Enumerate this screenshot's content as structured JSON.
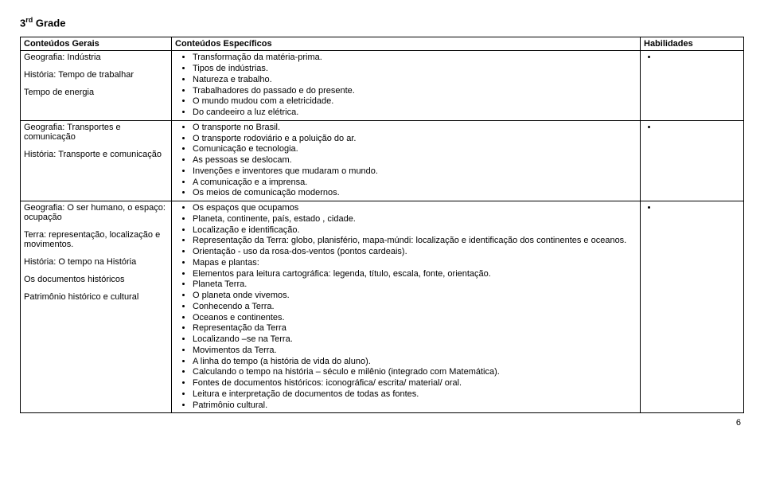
{
  "title_pre": "3",
  "title_sup": "rd",
  "title_post": " Grade",
  "headers": {
    "c1": "Conteúdos Gerais",
    "c2": "Conteúdos Específicos",
    "c3": "Habilidades"
  },
  "rows": [
    {
      "general": [
        "Geografia: Indústria",
        "História: Tempo de trabalhar",
        "Tempo de energia"
      ],
      "specific": [
        "Transformação da matéria-prima.",
        "Tipos de indústrias.",
        "Natureza e trabalho.",
        "Trabalhadores do passado e do presente.",
        "O mundo mudou com a eletricidade.",
        " Do candeeiro a luz elétrica."
      ],
      "hab": [
        ""
      ]
    },
    {
      "general": [
        "Geografia: Transportes e comunicação",
        "História: Transporte e comunicação"
      ],
      "specific": [
        "O transporte no Brasil.",
        "O transporte rodoviário e a poluição do ar.",
        "Comunicação e tecnologia.",
        "As pessoas se deslocam.",
        "Invenções e inventores que mudaram o mundo.",
        "A comunicação e a imprensa.",
        "Os meios de comunicação modernos."
      ],
      "hab": [
        ""
      ]
    },
    {
      "general": [
        "Geografia: O ser humano, o espaço: ocupação",
        "Terra: representação, localização e movimentos.",
        "História: O tempo na História",
        "Os documentos históricos",
        "Patrimônio histórico e cultural"
      ],
      "specific": [
        "Os espaços que ocupamos",
        "Planeta, continente, país, estado , cidade.",
        "Localização e identificação.",
        "Representação da Terra: globo, planisfério, mapa-múndi: localização e identificação dos continentes e oceanos.",
        "Orientação - uso da rosa-dos-ventos (pontos cardeais).",
        "Mapas e plantas:",
        "Elementos para leitura cartográfica: legenda, título, escala, fonte, orientação.",
        "Planeta Terra.",
        "O planeta onde vivemos.",
        "Conhecendo a Terra.",
        "Oceanos e continentes.",
        "Representação da Terra",
        "Localizando –se na Terra.",
        "Movimentos da Terra.",
        "A linha do tempo (a história de vida do aluno).",
        "Calculando o tempo na história – século e milênio (integrado com Matemática).",
        "Fontes de documentos históricos: iconográfica/ escrita/ material/ oral.",
        "Leitura e interpretação de documentos de todas as fontes.",
        "Patrimônio cultural."
      ],
      "hab": [
        ""
      ]
    }
  ],
  "page_number": "6"
}
